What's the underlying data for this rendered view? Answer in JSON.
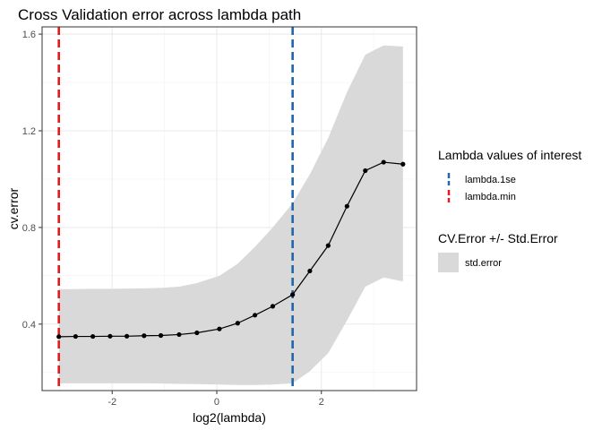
{
  "chart_data": {
    "type": "line",
    "title": "Cross Validation error across lambda path",
    "xlabel": "log2(lambda)",
    "ylabel": "cv.error",
    "xlim": [
      -3.34,
      3.82
    ],
    "ylim": [
      0.125,
      1.63
    ],
    "x_ticks": [
      -2,
      0,
      2
    ],
    "y_ticks": [
      0.4,
      0.8,
      1.2,
      1.6
    ],
    "x_tick_labels": [
      "-2",
      "0",
      "2"
    ],
    "y_tick_labels": [
      "0.4",
      "0.8",
      "1.2",
      "1.6"
    ],
    "grid": true,
    "series": [
      {
        "name": "cv.error",
        "x": [
          -3.02,
          -2.7,
          -2.37,
          -2.04,
          -1.72,
          -1.39,
          -1.07,
          -0.72,
          -0.38,
          0.05,
          0.4,
          0.73,
          1.07,
          1.45,
          1.78,
          2.13,
          2.49,
          2.84,
          3.19,
          3.56
        ],
        "y": [
          0.348,
          0.349,
          0.349,
          0.35,
          0.35,
          0.352,
          0.353,
          0.357,
          0.364,
          0.38,
          0.404,
          0.437,
          0.474,
          0.522,
          0.62,
          0.725,
          0.888,
          1.035,
          1.07,
          1.062
        ],
        "upper": [
          0.545,
          0.545,
          0.546,
          0.546,
          0.547,
          0.548,
          0.55,
          0.555,
          0.57,
          0.6,
          0.65,
          0.72,
          0.8,
          0.9,
          1.02,
          1.17,
          1.36,
          1.515,
          1.553,
          1.549
        ],
        "lower": [
          0.155,
          0.155,
          0.155,
          0.155,
          0.155,
          0.155,
          0.154,
          0.153,
          0.152,
          0.15,
          0.148,
          0.148,
          0.15,
          0.155,
          0.205,
          0.28,
          0.415,
          0.555,
          0.593,
          0.577
        ]
      }
    ],
    "vlines": [
      {
        "name": "lambda.1se",
        "x": 1.45,
        "color": "#2166ac"
      },
      {
        "name": "lambda.min",
        "x": -3.02,
        "color": "#e41a1c"
      }
    ],
    "legend": {
      "placement": "right",
      "lines_title": "Lambda values of interest",
      "band_title": "CV.Error +/- Std.Error",
      "band_label": "std.error",
      "band_color": "#d9d9d9"
    }
  }
}
